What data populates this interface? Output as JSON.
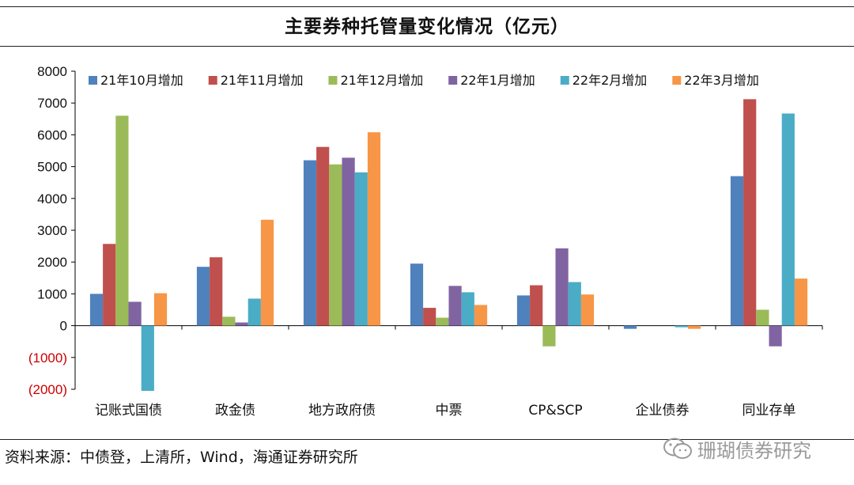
{
  "header": {
    "title": "主要券种托管量变化情况（亿元）"
  },
  "footer": {
    "source": "资料来源：中债登，上清所，Wind，海通证券研究所",
    "watermark": "珊瑚债券研究"
  },
  "colors": {
    "positive_tick": "#111111",
    "negative_tick": "#cc0000"
  },
  "chart_data": {
    "type": "bar",
    "title": "主要券种托管量变化情况（亿元）",
    "xlabel": "",
    "ylabel": "",
    "ylim": [
      -2000,
      8000
    ],
    "yticks": [
      8000,
      7000,
      6000,
      5000,
      4000,
      3000,
      2000,
      1000,
      0,
      -1000,
      -2000
    ],
    "ytick_labels": [
      "8000",
      "7000",
      "6000",
      "5000",
      "4000",
      "3000",
      "2000",
      "1000",
      "0",
      "(1000)",
      "(2000)"
    ],
    "grid": false,
    "legend_position": "top",
    "categories": [
      "记账式国债",
      "政金债",
      "地方政府债",
      "中票",
      "CP&SCP",
      "企业债券",
      "同业存单"
    ],
    "series": [
      {
        "name": "21年10月增加",
        "color": "#4f81bd",
        "values": [
          1000,
          1850,
          5200,
          1950,
          950,
          -100,
          4700
        ]
      },
      {
        "name": "21年11月增加",
        "color": "#c0504d",
        "values": [
          2570,
          2150,
          5620,
          560,
          1270,
          0,
          7120
        ]
      },
      {
        "name": "21年12月增加",
        "color": "#9bbb59",
        "values": [
          6600,
          280,
          5070,
          250,
          -650,
          0,
          500
        ]
      },
      {
        "name": "22年1月增加",
        "color": "#8064a2",
        "values": [
          750,
          100,
          5280,
          1250,
          2430,
          0,
          -650
        ]
      },
      {
        "name": "22年2月增加",
        "color": "#4bacc6",
        "values": [
          -2050,
          850,
          4820,
          1050,
          1370,
          -50,
          6670
        ]
      },
      {
        "name": "22年3月增加",
        "color": "#f79646",
        "values": [
          1020,
          3330,
          6080,
          650,
          980,
          -100,
          1480
        ]
      }
    ]
  }
}
